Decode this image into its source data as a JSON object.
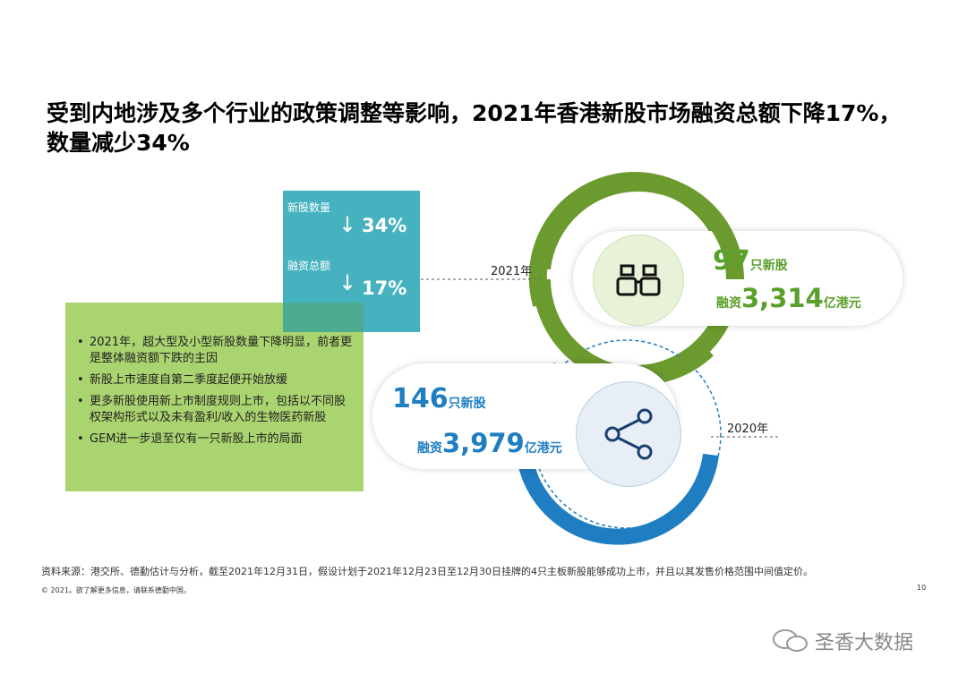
{
  "title": "受到内地涉及多个行业的政策调整等影响，2021年香港新股市场融资总额下降17%，数量减少34%",
  "stats": {
    "ipo_count_label": "新股数量",
    "ipo_count_change": "34%",
    "funds_label": "融资总额",
    "funds_change": "17%"
  },
  "bullets": [
    "2021年，超大型及小型新股数量下降明显，前者更是整体融资额下跌的主因",
    "新股上市速度自第二季度起便开始放缓",
    "更多新股使用新上市制度规则上市，包括以不同股权架构形式以及未有盈利/收入的生物医药新股",
    "GEM进一步退至仅有一只新股上市的局面"
  ],
  "year_2021": {
    "label": "2021年",
    "count": "97",
    "count_unit": "只新股",
    "funds_prefix": "融资",
    "funds": "3,314",
    "funds_unit": "亿港元",
    "icon": "binoculars-icon"
  },
  "year_2020": {
    "label": "2020年",
    "count": "146",
    "count_unit": "只新股",
    "funds_prefix": "融资",
    "funds": "3,979",
    "funds_unit": "亿港元",
    "icon": "share-icon"
  },
  "footer": {
    "source": "资料来源：港交所、德勤估计与分析，截至2021年12月31日，假设计划于2021年12月23日至12月30日挂牌的4只主板新股能够成功上市，并且以其发售价格范围中间值定价。",
    "copyright": "© 2021。欲了解更多信息，请联系德勤中国。",
    "page": "10"
  },
  "watermark": "圣香大数据",
  "colors": {
    "green": "#6b9a2e",
    "teal": "#26a5b4",
    "blue": "#1f7ec2",
    "light_green": "#8dc63f"
  }
}
